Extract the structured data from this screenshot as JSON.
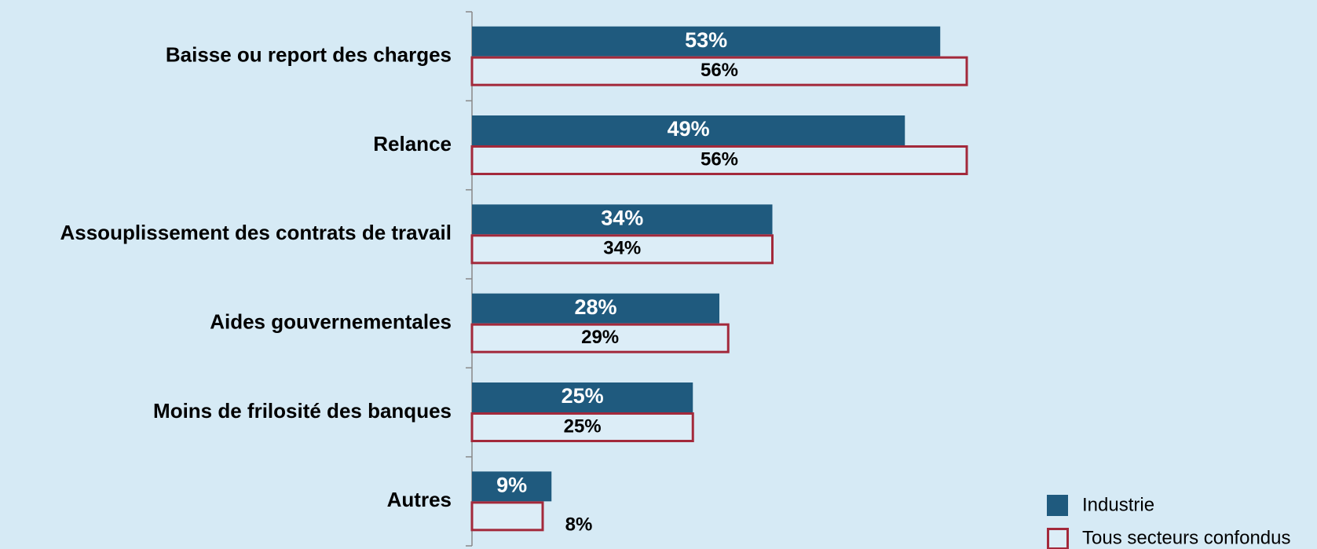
{
  "chart_data": {
    "type": "hbar",
    "categories": [
      "Baisse ou report des charges",
      "Relance",
      "Assouplissement des contrats de travail",
      "Aides gouvernementales",
      "Moins de frilosité des banques",
      "Autres"
    ],
    "series": [
      {
        "name": "Industrie",
        "color": "#1f5a7e",
        "values": [
          53,
          49,
          34,
          28,
          25,
          9
        ],
        "value_labels": [
          "53%",
          "49%",
          "34%",
          "28%",
          "25%",
          "9%"
        ]
      },
      {
        "name": "Tous secteurs confondus",
        "color": "#a3293b",
        "values": [
          56,
          56,
          34,
          29,
          25,
          8
        ],
        "value_labels": [
          "56%",
          "56%",
          "34%",
          "29%",
          "25%",
          "8%"
        ]
      }
    ],
    "legend": "bottom-right"
  }
}
